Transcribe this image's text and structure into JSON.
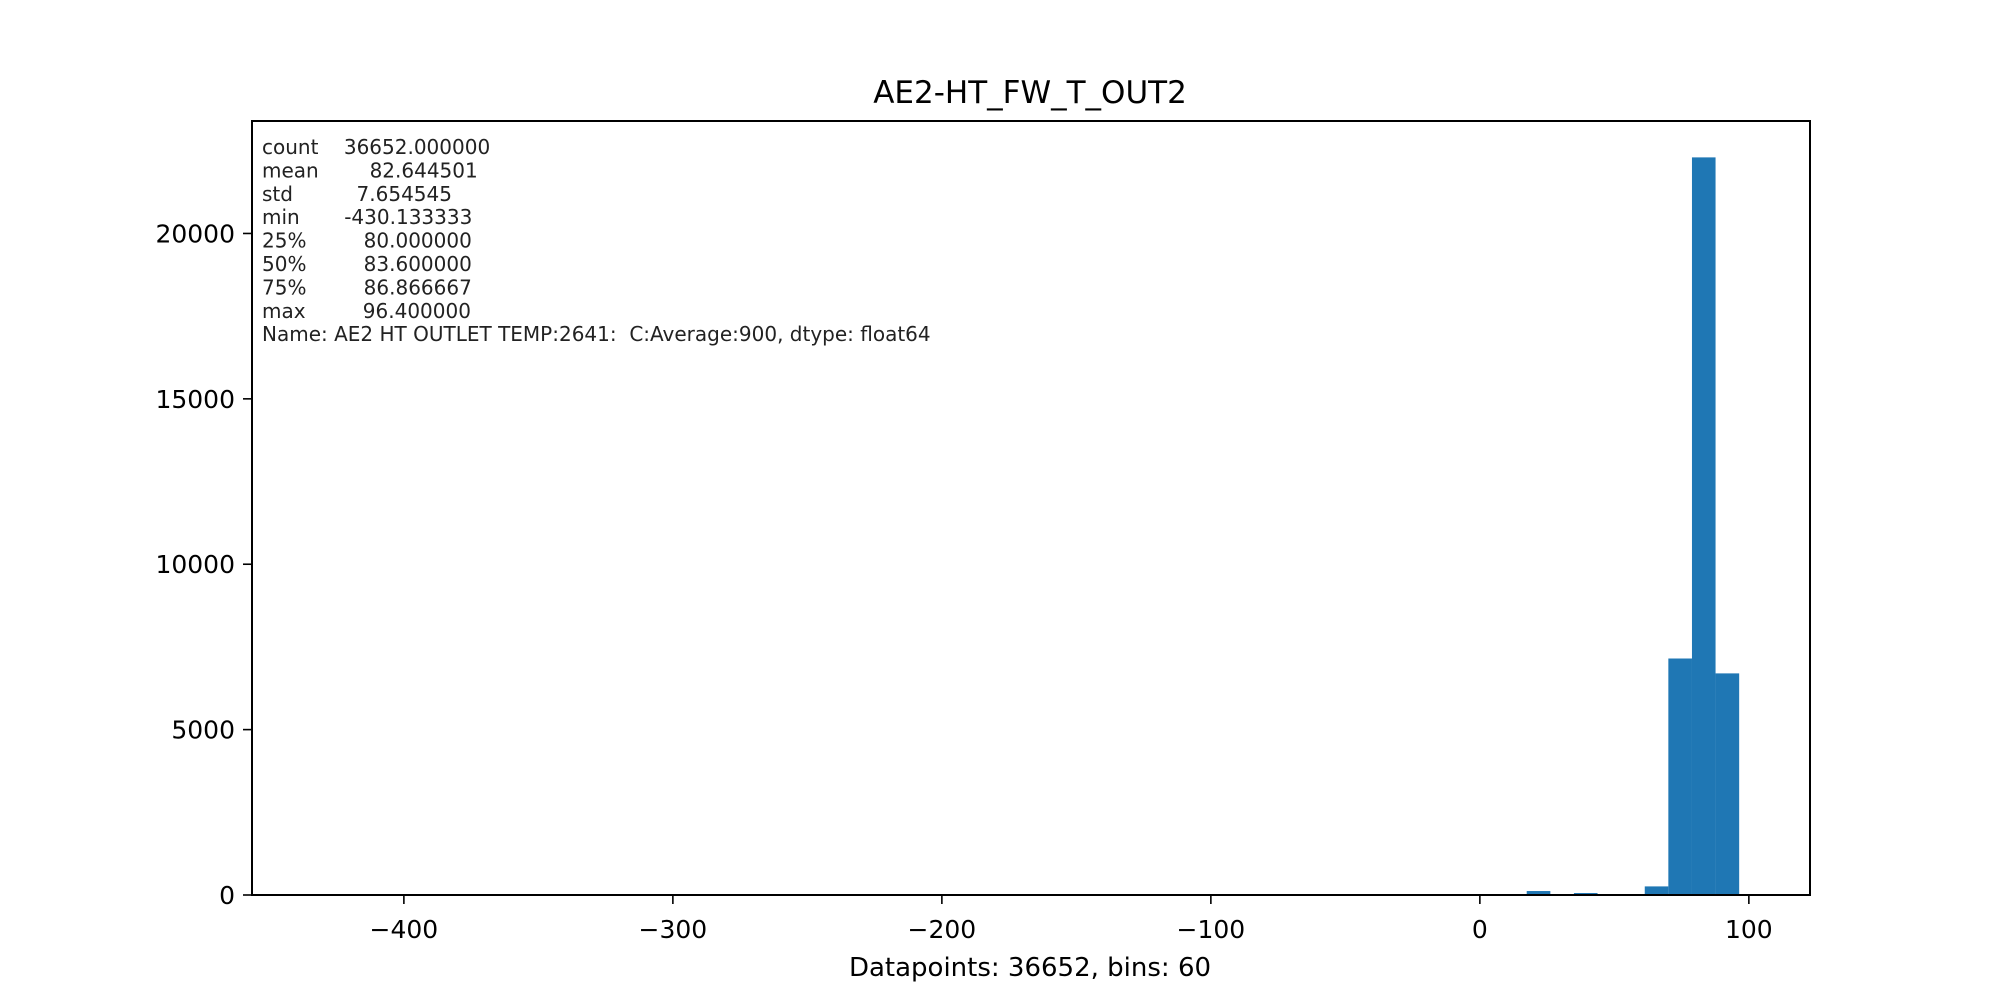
{
  "chart_data": {
    "type": "bar",
    "title": "AE2-HT_FW_T_OUT2",
    "xlabel": "Datapoints: 36652, bins: 60",
    "ylabel": "",
    "xlim": [
      -456.46,
      122.73
    ],
    "ylim": [
      0,
      23400
    ],
    "x_ticks": [
      -400,
      -300,
      -200,
      -100,
      0,
      100
    ],
    "x_tick_labels": [
      "−400",
      "−300",
      "−200",
      "−100",
      "0",
      "100"
    ],
    "y_ticks": [
      0,
      5000,
      10000,
      15000,
      20000
    ],
    "y_tick_labels": [
      "0",
      "5000",
      "10000",
      "15000",
      "20000"
    ],
    "bar_color": "#1f77b4",
    "bins": {
      "start": -430.133333,
      "width": 8.775556,
      "count": 60
    },
    "bars": [
      {
        "x0": -430.133333,
        "x1": -421.357778,
        "value": 1
      },
      {
        "x0": 17.42,
        "x1": 26.2,
        "value": 120
      },
      {
        "x0": 34.97,
        "x1": 43.75,
        "value": 60
      },
      {
        "x0": 61.3,
        "x1": 70.07,
        "value": 260
      },
      {
        "x0": 70.07,
        "x1": 78.85,
        "value": 7150
      },
      {
        "x0": 78.85,
        "x1": 87.62,
        "value": 22300
      },
      {
        "x0": 87.62,
        "x1": 96.4,
        "value": 6700
      }
    ],
    "annotations": [
      "count    36652.000000",
      "mean        82.644501",
      "std          7.654545",
      "min       -430.133333",
      "25%         80.000000",
      "50%         83.600000",
      "75%         86.866667",
      "max         96.400000",
      "Name: AE2 HT OUTLET TEMP:2641:  C:Average:900, dtype: float64"
    ]
  }
}
